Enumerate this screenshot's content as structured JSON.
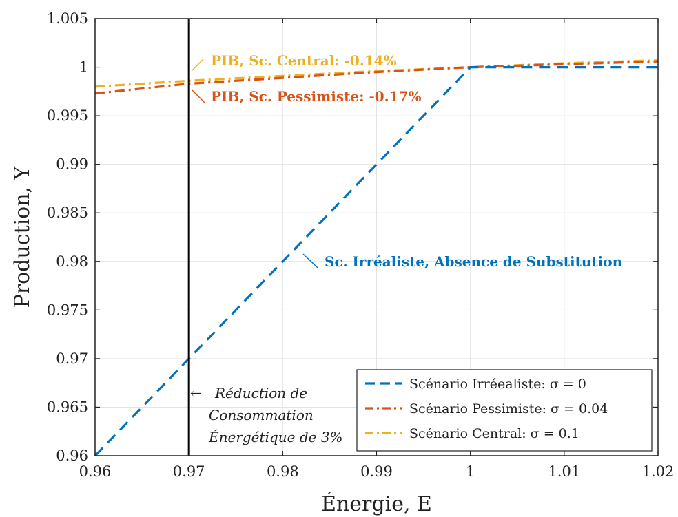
{
  "chart_data": {
    "type": "line",
    "title": "",
    "xlabel": "Énergie, E",
    "ylabel": "Production, Y",
    "xlim": [
      0.96,
      1.02
    ],
    "ylim": [
      0.96,
      1.005
    ],
    "xticks": [
      0.96,
      0.97,
      0.98,
      0.99,
      1,
      1.01,
      1.02
    ],
    "xtick_labels": [
      "0.96",
      "0.97",
      "0.98",
      "0.99",
      "1",
      "1.01",
      "1.02"
    ],
    "yticks": [
      0.96,
      0.965,
      0.97,
      0.975,
      0.98,
      0.985,
      0.99,
      0.995,
      1,
      1.005
    ],
    "ytick_labels": [
      "0.96",
      "0.965",
      "0.97",
      "0.975",
      "0.98",
      "0.985",
      "0.99",
      "0.995",
      "1",
      "1.005"
    ],
    "grid": true,
    "legend_position": "bottom-right",
    "series": [
      {
        "name": "Scénario Irréealiste: σ = 0",
        "color": "#0072BD",
        "style": "dashed",
        "x": [
          0.96,
          0.97,
          0.98,
          0.99,
          1.0,
          1.01,
          1.02
        ],
        "y": [
          0.96,
          0.97,
          0.98,
          0.99,
          1.0,
          1.0,
          1.0
        ]
      },
      {
        "name": "Scénario Pessimiste: σ = 0.04",
        "color": "#D95319",
        "style": "dashdot",
        "x": [
          0.96,
          0.97,
          0.98,
          0.99,
          1.0,
          1.01,
          1.02
        ],
        "y": [
          0.9973,
          0.9983,
          0.9989,
          0.9995,
          1.0,
          1.0003,
          1.0006
        ]
      },
      {
        "name": "Scénario Central: σ = 0.1",
        "color": "#EDB120",
        "style": "dashdot",
        "x": [
          0.96,
          0.97,
          0.98,
          0.99,
          1.0,
          1.01,
          1.02
        ],
        "y": [
          0.998,
          0.9986,
          0.9991,
          0.9996,
          1.0,
          1.0004,
          1.0007
        ]
      }
    ],
    "vertical_line": {
      "x": 0.97,
      "color": "#000000"
    },
    "annotations": {
      "central": {
        "text": "PIB, Sc. Central: -0.14%",
        "color": "#EDB120"
      },
      "pessimiste": {
        "text": "PIB, Sc. Pessimiste: -0.17%",
        "color": "#D95319"
      },
      "irrealiste": {
        "text": "Sc. Irréaliste, Absence de Substitution",
        "color": "#0072BD"
      },
      "reduction": [
        "Réduction de",
        "Consommation",
        "Énergétique de 3%"
      ]
    }
  }
}
